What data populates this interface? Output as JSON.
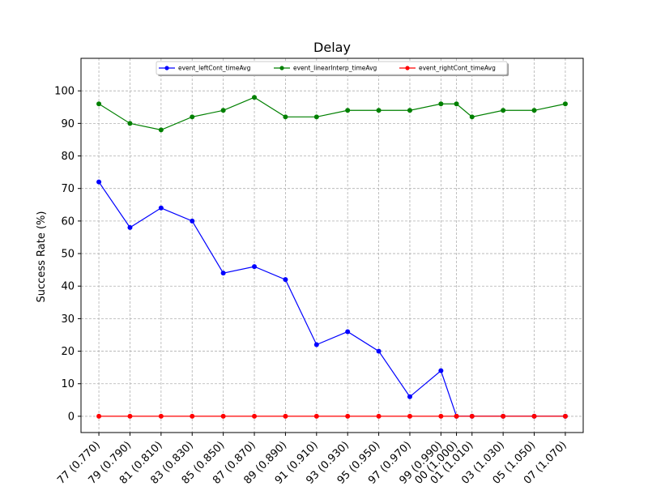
{
  "chart_data": {
    "type": "line",
    "title": "Delay",
    "xlabel": "",
    "ylabel": "Success Rate (%)",
    "ylim": [
      -5,
      110
    ],
    "yticks": [
      0,
      10,
      20,
      30,
      40,
      50,
      60,
      70,
      80,
      90,
      100
    ],
    "grid": true,
    "legend_position": "top-center",
    "categories": [
      "77 (0.770)",
      "79 (0.790)",
      "81 (0.810)",
      "83 (0.830)",
      "85 (0.850)",
      "87 (0.870)",
      "89 (0.890)",
      "91 (0.910)",
      "93 (0.930)",
      "95 (0.950)",
      "97 (0.970)",
      "99 (0.990)",
      "00 (1.000)",
      "01 (1.010)",
      "03 (1.030)",
      "05 (1.050)",
      "07 (1.070)"
    ],
    "x": [
      0.77,
      0.79,
      0.81,
      0.83,
      0.85,
      0.87,
      0.89,
      0.91,
      0.93,
      0.95,
      0.97,
      0.99,
      1.0,
      1.01,
      1.03,
      1.05,
      1.07
    ],
    "series": [
      {
        "name": "event_leftCont_timeAvg",
        "color": "#0000ff",
        "values": [
          72,
          58,
          64,
          60,
          44,
          46,
          42,
          22,
          26,
          20,
          6,
          14,
          0,
          0,
          0,
          0,
          0
        ]
      },
      {
        "name": "event_linearInterp_timeAvg",
        "color": "#008000",
        "values": [
          96,
          90,
          88,
          92,
          94,
          98,
          92,
          92,
          94,
          94,
          94,
          96,
          96,
          92,
          94,
          94,
          96
        ]
      },
      {
        "name": "event_rightCont_timeAvg",
        "color": "#ff0000",
        "values": [
          0,
          0,
          0,
          0,
          0,
          0,
          0,
          0,
          0,
          0,
          0,
          0,
          0,
          0,
          0,
          0,
          0
        ]
      }
    ]
  }
}
